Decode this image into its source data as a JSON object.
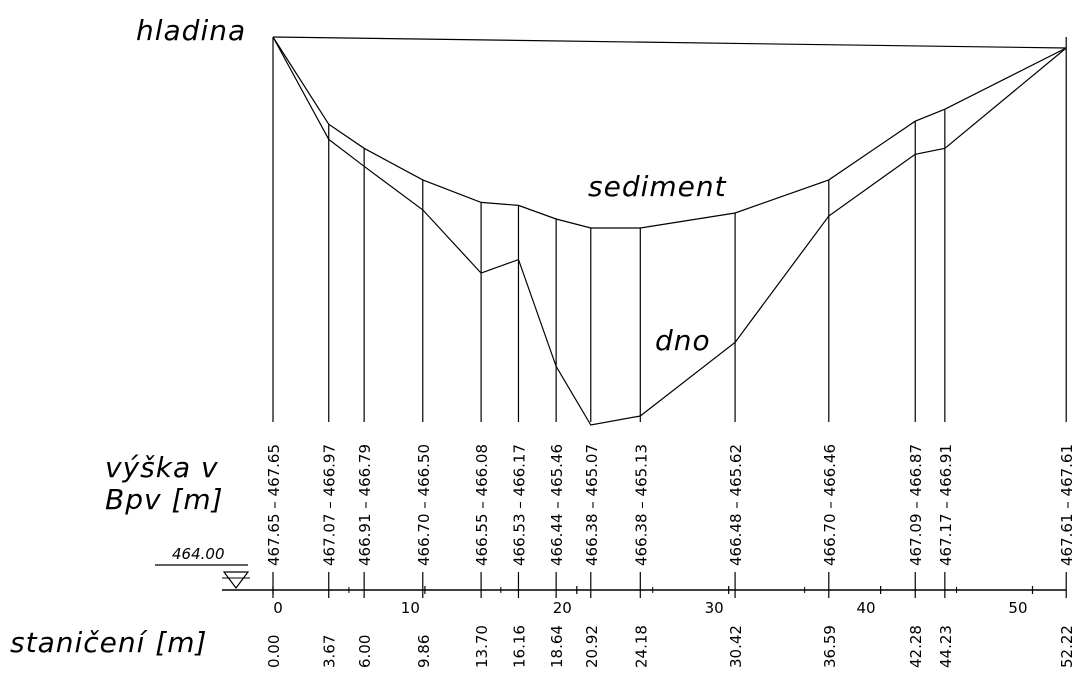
{
  "labels": {
    "surface": "hladina",
    "sediment": "sediment",
    "bottom": "dno",
    "height_line1": "výška v",
    "height_line2": "Bpv [m]",
    "stationing": "staničení [m]"
  },
  "reference_level": "464.00",
  "water_level": [
    467.65,
    467.61
  ],
  "stations": [
    {
      "station": "0.00",
      "x": 0.0,
      "bottom": 467.65,
      "sediment": 467.65,
      "text": "467.65 – 467.65"
    },
    {
      "station": "3.67",
      "x": 3.67,
      "bottom": 466.97,
      "sediment": 467.07,
      "text": "467.07 – 466.97"
    },
    {
      "station": "6.00",
      "x": 6.0,
      "bottom": 466.79,
      "sediment": 466.91,
      "text": "466.91 – 466.79"
    },
    {
      "station": "9.86",
      "x": 9.86,
      "bottom": 466.5,
      "sediment": 466.7,
      "text": "466.70 – 466.50"
    },
    {
      "station": "13.70",
      "x": 13.7,
      "bottom": 466.08,
      "sediment": 466.55,
      "text": "466.55 – 466.08"
    },
    {
      "station": "16.16",
      "x": 16.16,
      "bottom": 466.17,
      "sediment": 466.53,
      "text": "466.53 – 466.17"
    },
    {
      "station": "18.64",
      "x": 18.64,
      "bottom": 465.46,
      "sediment": 466.44,
      "text": "466.44 – 465.46"
    },
    {
      "station": "20.92",
      "x": 20.92,
      "bottom": 465.07,
      "sediment": 466.38,
      "text": "466.38 – 465.07"
    },
    {
      "station": "24.18",
      "x": 24.18,
      "bottom": 465.13,
      "sediment": 466.38,
      "text": "466.38 – 465.13"
    },
    {
      "station": "30.42",
      "x": 30.42,
      "bottom": 465.62,
      "sediment": 466.48,
      "text": "466.48 – 465.62"
    },
    {
      "station": "36.59",
      "x": 36.59,
      "bottom": 466.46,
      "sediment": 466.7,
      "text": "466.70 – 466.46"
    },
    {
      "station": "42.28",
      "x": 42.28,
      "bottom": 466.87,
      "sediment": 467.09,
      "text": "467.09 – 466.87"
    },
    {
      "station": "44.23",
      "x": 44.23,
      "bottom": 466.91,
      "sediment": 467.17,
      "text": "467.17 – 466.91"
    },
    {
      "station": "52.22",
      "x": 52.22,
      "bottom": 467.61,
      "sediment": 467.61,
      "text": "467.61 – 467.61"
    }
  ],
  "axis": {
    "x_range": [
      0,
      52.22
    ],
    "ticks": [
      {
        "value": 0,
        "label": "0"
      },
      {
        "value": 10,
        "label": "10"
      },
      {
        "value": 20,
        "label": "20"
      },
      {
        "value": 30,
        "label": "30"
      },
      {
        "value": 40,
        "label": "40"
      },
      {
        "value": 50,
        "label": "50"
      }
    ]
  }
}
